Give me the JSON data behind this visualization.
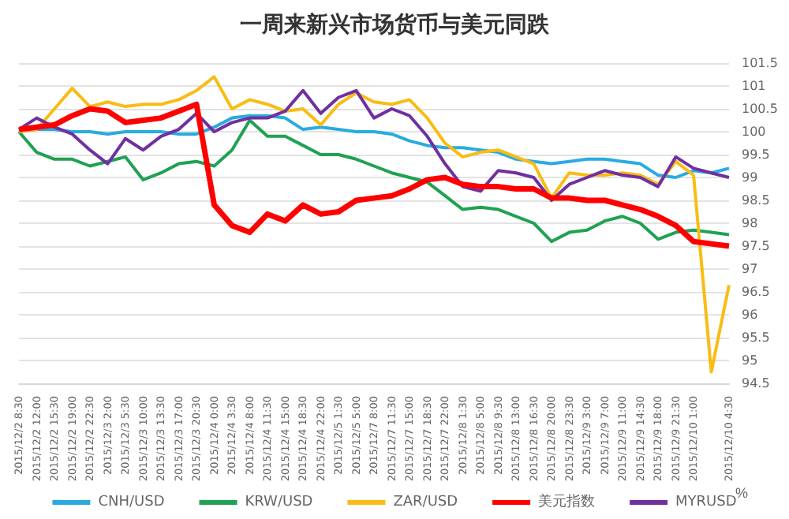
{
  "chart_data": {
    "type": "line",
    "title": "一周来新兴市场货币与美元同跌",
    "ylabel": "%",
    "categories": [
      "2015/12/2 8:30",
      "2015/12/2 12:00",
      "2015/12/2 15:30",
      "2015/12/2 19:00",
      "2015/12/2 22:30",
      "2015/12/3 2:00",
      "2015/12/3 5:30",
      "2015/12/3 10:00",
      "2015/12/3 13:30",
      "2015/12/3 17:00",
      "2015/12/3 20:30",
      "2015/12/4 0:00",
      "2015/12/4 3:30",
      "2015/12/4 8:00",
      "2015/12/4 11:30",
      "2015/12/4 15:00",
      "2015/12/4 18:30",
      "2015/12/4 22:00",
      "2015/12/5 1:30",
      "2015/12/5 5:00",
      "2015/12/7 8:00",
      "2015/12/7 11:30",
      "2015/12/7 15:00",
      "2015/12/7 18:30",
      "2015/12/7 22:00",
      "2015/12/8 1:30",
      "2015/12/8 5:00",
      "2015/12/8 9:30",
      "2015/12/8 13:00",
      "2015/12/8 16:30",
      "2015/12/8 20:00",
      "2015/12/8 23:30",
      "2015/12/9 3:00",
      "2015/12/9 7:00",
      "2015/12/9 11:00",
      "2015/12/9 14:30",
      "2015/12/9 18:00",
      "2015/12/9 21:30",
      "2015/12/10 1:00",
      null,
      "2015/12/10 4:30"
    ],
    "series": [
      {
        "name": "CNH/USD",
        "color": "#29abe2",
        "values": [
          100.0,
          100.05,
          100.05,
          100.0,
          100.0,
          99.95,
          100.0,
          100.0,
          100.0,
          99.95,
          99.95,
          100.1,
          100.3,
          100.35,
          100.35,
          100.3,
          100.05,
          100.1,
          100.05,
          100.0,
          100.0,
          99.95,
          99.8,
          99.7,
          99.65,
          99.65,
          99.6,
          99.55,
          99.4,
          99.35,
          99.3,
          99.35,
          99.4,
          99.4,
          99.35,
          99.3,
          99.05,
          99.0,
          99.15,
          99.1,
          99.2
        ]
      },
      {
        "name": "KRW/USD",
        "color": "#21a153",
        "values": [
          100.0,
          99.55,
          99.4,
          99.4,
          99.25,
          99.35,
          99.45,
          98.95,
          99.1,
          99.3,
          99.35,
          99.25,
          99.6,
          100.25,
          99.9,
          99.9,
          99.7,
          99.5,
          99.5,
          99.4,
          99.25,
          99.1,
          99.0,
          98.9,
          98.6,
          98.3,
          98.35,
          98.3,
          98.15,
          98.0,
          97.6,
          97.8,
          97.85,
          98.05,
          98.15,
          98.0,
          97.65,
          97.8,
          97.85,
          97.8,
          97.75
        ]
      },
      {
        "name": "ZAR/USD",
        "color": "#f9bc15",
        "values": [
          100.0,
          100.05,
          100.5,
          100.95,
          100.55,
          100.65,
          100.55,
          100.6,
          100.6,
          100.7,
          100.9,
          101.2,
          100.5,
          100.7,
          100.6,
          100.45,
          100.5,
          100.15,
          100.6,
          100.85,
          100.65,
          100.6,
          100.7,
          100.3,
          99.75,
          99.45,
          99.55,
          99.6,
          99.45,
          99.3,
          98.55,
          99.1,
          99.05,
          99.05,
          99.1,
          99.05,
          98.85,
          99.35,
          99.05,
          94.75,
          96.65
        ]
      },
      {
        "name": "美元指数",
        "color": "#ff0000",
        "values": [
          100.05,
          100.1,
          100.15,
          100.35,
          100.5,
          100.45,
          100.2,
          100.25,
          100.3,
          100.45,
          100.6,
          98.4,
          97.95,
          97.8,
          98.2,
          98.05,
          98.4,
          98.2,
          98.25,
          98.5,
          98.55,
          98.6,
          98.75,
          98.95,
          99.0,
          98.85,
          98.8,
          98.8,
          98.75,
          98.75,
          98.55,
          98.55,
          98.5,
          98.5,
          98.4,
          98.3,
          98.15,
          97.95,
          97.6,
          97.55,
          97.5
        ]
      },
      {
        "name": "MYRUSD",
        "color": "#7030a0",
        "values": [
          100.05,
          100.3,
          100.1,
          99.95,
          99.6,
          99.3,
          99.85,
          99.6,
          99.9,
          100.05,
          100.4,
          100.0,
          100.2,
          100.3,
          100.3,
          100.45,
          100.9,
          100.4,
          100.75,
          100.9,
          100.3,
          100.5,
          100.35,
          99.9,
          99.3,
          98.8,
          98.7,
          99.15,
          99.1,
          99.0,
          98.5,
          98.85,
          99.0,
          99.15,
          99.05,
          99.0,
          98.8,
          99.45,
          99.2,
          99.1,
          99.0
        ]
      }
    ],
    "ylim": [
      94.5,
      101.5
    ],
    "yticks": [
      94.5,
      95,
      95.5,
      96,
      96.5,
      97,
      97.5,
      98,
      98.5,
      99,
      99.5,
      100,
      100.5,
      101,
      101.5
    ],
    "grid": "y",
    "legend": "bottom",
    "marker": "none",
    "line_style": "solid"
  }
}
